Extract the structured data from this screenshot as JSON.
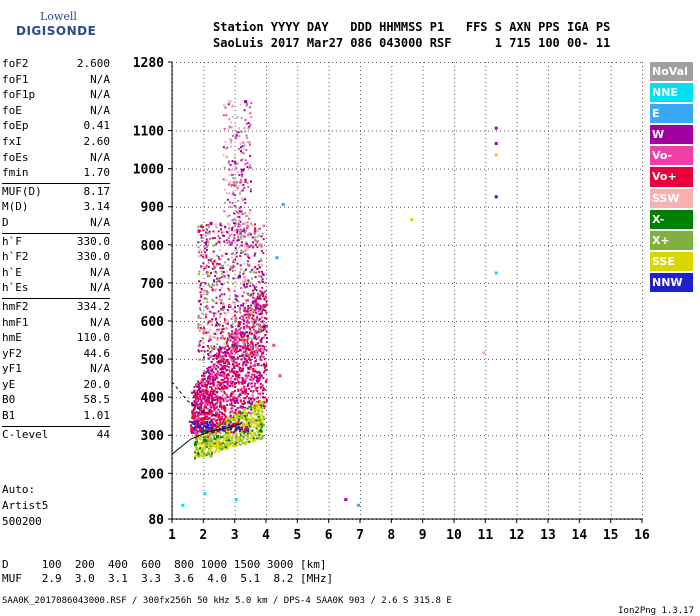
{
  "logo": {
    "line1": "Lowell",
    "line2": "DIGISONDE"
  },
  "header": {
    "line1": "Station YYYY DAY   DDD HHMMSS P1   FFS S AXN PPS IGA PS",
    "line2": "SaoLuis 2017 Mar27 086 043000 RSF      1 715 100 00- 11"
  },
  "params": [
    [
      {
        "n": "foF2",
        "v": "2.600"
      },
      {
        "n": "foF1",
        "v": "N/A"
      },
      {
        "n": "foF1p",
        "v": "N/A"
      },
      {
        "n": "foE",
        "v": "N/A"
      },
      {
        "n": "foEp",
        "v": "0.41"
      },
      {
        "n": "fxI",
        "v": "2.60"
      },
      {
        "n": "foEs",
        "v": "N/A"
      },
      {
        "n": "fmin",
        "v": "1.70"
      }
    ],
    [
      {
        "n": "MUF(D)",
        "v": "8.17"
      },
      {
        "n": "M(D)",
        "v": "3.14"
      },
      {
        "n": "D",
        "v": "N/A"
      }
    ],
    [
      {
        "n": "h`F",
        "v": "330.0"
      },
      {
        "n": "h`F2",
        "v": "330.0"
      },
      {
        "n": "h`E",
        "v": "N/A"
      },
      {
        "n": "h`Es",
        "v": "N/A"
      }
    ],
    [
      {
        "n": "hmF2",
        "v": "334.2"
      },
      {
        "n": "hmF1",
        "v": "N/A"
      },
      {
        "n": "hmE",
        "v": "110.0"
      },
      {
        "n": "yF2",
        "v": "44.6"
      },
      {
        "n": "yF1",
        "v": "N/A"
      },
      {
        "n": "yE",
        "v": "20.0"
      },
      {
        "n": "B0",
        "v": "58.5"
      },
      {
        "n": "B1",
        "v": "1.01"
      }
    ],
    [
      {
        "n": "C-level",
        "v": "44"
      }
    ]
  ],
  "auto": {
    "line1": "Auto:",
    "line2": "Artist5",
    "line3": "500200"
  },
  "legend": [
    {
      "label": "NoVal",
      "color": "#a0a0a0"
    },
    {
      "label": "NNE",
      "color": "#00e0f0"
    },
    {
      "label": "E",
      "color": "#3aa8f8"
    },
    {
      "label": "W",
      "color": "#a000a0"
    },
    {
      "label": "Vo-",
      "color": "#f040a8"
    },
    {
      "label": "Vo+",
      "color": "#e8003c"
    },
    {
      "label": "SSW",
      "color": "#f8b0b0"
    },
    {
      "label": "X-",
      "color": "#008000"
    },
    {
      "label": "X+",
      "color": "#80b040"
    },
    {
      "label": "SSE",
      "color": "#d8d800"
    },
    {
      "label": "NNW",
      "color": "#2020d0"
    }
  ],
  "dmuf": {
    "d": "D     100  200  400  600  800 1000 1500 3000 [km]",
    "muf": "MUF   2.9  3.0  3.1  3.3  3.6  4.0  5.1  8.2 [MHz]"
  },
  "footer": {
    "left": "SAA0K_2017086043000.RSF / 300fx256h 50 kHz 5.0 km / DPS-4 SAA0K 903 / 2.6 S 315.8 E",
    "right": "Ion2Png 1.3.17"
  },
  "chart_data": {
    "type": "scatter",
    "title": "",
    "xlabel": "",
    "ylabel": "",
    "x_ticks": [
      "1",
      "2",
      "3",
      "4",
      "5",
      "6",
      "7",
      "8",
      "9",
      "10",
      "11",
      "12",
      "13",
      "14",
      "15",
      "16"
    ],
    "y_ticks": [
      "80",
      "200",
      "300",
      "400",
      "500",
      "600",
      "700",
      "800",
      "900",
      "1000",
      "1100",
      "1280"
    ],
    "xlim": [
      1,
      16
    ],
    "ylim": [
      80,
      1280
    ],
    "grid": true,
    "legend_position": "right",
    "series": [
      {
        "name": "W",
        "color": "#a000a0",
        "points": [
          [
            2.6,
            640
          ],
          [
            2.9,
            540
          ],
          [
            3.1,
            720
          ],
          [
            3.4,
            480
          ],
          [
            3.6,
            560
          ],
          [
            3.8,
            460
          ],
          [
            2.2,
            860
          ],
          [
            3.2,
            1000
          ],
          [
            3.3,
            1180
          ],
          [
            11.3,
            1110
          ],
          [
            11.3,
            1070
          ],
          [
            6.5,
            135
          ],
          [
            3.9,
            590
          ]
        ]
      },
      {
        "name": "Vo+",
        "color": "#e8003c",
        "points": [
          [
            2.0,
            360
          ],
          [
            2.3,
            420
          ],
          [
            2.7,
            500
          ],
          [
            3.0,
            460
          ],
          [
            3.3,
            420
          ],
          [
            3.5,
            520
          ],
          [
            2.5,
            380
          ],
          [
            3.7,
            490
          ],
          [
            3.1,
            600
          ]
        ]
      },
      {
        "name": "Vo-",
        "color": "#f040a8",
        "points": [
          [
            2.1,
            300
          ],
          [
            2.6,
            460
          ],
          [
            3.0,
            560
          ],
          [
            3.4,
            600
          ],
          [
            4.2,
            540
          ],
          [
            4.4,
            460
          ]
        ]
      },
      {
        "name": "SSE",
        "color": "#d8d800",
        "points": [
          [
            2.0,
            270
          ],
          [
            2.4,
            280
          ],
          [
            2.8,
            300
          ],
          [
            3.2,
            330
          ],
          [
            3.6,
            360
          ],
          [
            3.8,
            390
          ],
          [
            8.6,
            870
          ],
          [
            11.3,
            1040
          ]
        ]
      },
      {
        "name": "X-",
        "color": "#008000",
        "points": [
          [
            1.7,
            280
          ],
          [
            2.0,
            290
          ],
          [
            2.4,
            300
          ]
        ]
      },
      {
        "name": "X+",
        "color": "#80b040",
        "points": [
          [
            2.2,
            250
          ],
          [
            2.5,
            280
          ],
          [
            3.0,
            300
          ]
        ]
      },
      {
        "name": "NNW",
        "color": "#2020d0",
        "points": [
          [
            2.1,
            330
          ],
          [
            2.6,
            325
          ],
          [
            3.0,
            320
          ],
          [
            11.3,
            930
          ]
        ]
      },
      {
        "name": "NNE",
        "color": "#00e0f0",
        "points": [
          [
            1.3,
            120
          ],
          [
            2.0,
            150
          ],
          [
            3.0,
            135
          ],
          [
            11.3,
            730
          ]
        ]
      },
      {
        "name": "E",
        "color": "#3aa8f8",
        "points": [
          [
            4.3,
            770
          ],
          [
            4.5,
            910
          ],
          [
            6.9,
            120
          ]
        ]
      },
      {
        "name": "SSW",
        "color": "#f8b0b0",
        "points": [
          [
            3.3,
            860
          ],
          [
            2.8,
            1180
          ],
          [
            10.9,
            520
          ]
        ]
      }
    ]
  }
}
